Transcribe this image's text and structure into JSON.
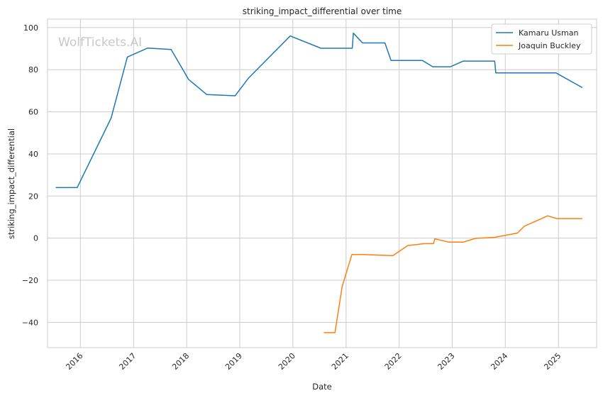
{
  "chart_data": {
    "type": "line",
    "title": "striking_impact_differential over time",
    "xlabel": "Date",
    "ylabel": "striking_impact_differential",
    "watermark": "WolfTickets.AI",
    "x_ticks": [
      "2016",
      "2017",
      "2018",
      "2019",
      "2020",
      "2021",
      "2022",
      "2023",
      "2024",
      "2025"
    ],
    "y_ticks": [
      "−40",
      "−20",
      "0",
      "20",
      "40",
      "60",
      "80",
      "100"
    ],
    "ylim": [
      -52,
      104
    ],
    "xlim": [
      "2015-05-20",
      "2025-09-20"
    ],
    "grid": true,
    "legend_position": "top-right",
    "series": [
      {
        "name": "Kamaru Usman",
        "color": "#1f77b4",
        "points": [
          [
            "2015-07-15",
            24
          ],
          [
            "2015-12-10",
            24
          ],
          [
            "2016-07-30",
            57
          ],
          [
            "2016-11-19",
            86
          ],
          [
            "2017-04-08",
            90.3
          ],
          [
            "2017-09-16",
            89.6
          ],
          [
            "2018-01-14",
            75.4
          ],
          [
            "2018-05-19",
            68.2
          ],
          [
            "2018-11-30",
            67.6
          ],
          [
            "2019-03-02",
            76
          ],
          [
            "2019-12-14",
            96
          ],
          [
            "2020-07-12",
            90.2
          ],
          [
            "2021-02-13",
            90.2
          ],
          [
            "2021-02-20",
            97.4
          ],
          [
            "2021-04-24",
            92.7
          ],
          [
            "2021-09-25",
            92.7
          ],
          [
            "2021-11-06",
            84.4
          ],
          [
            "2022-06-10",
            84.4
          ],
          [
            "2022-08-20",
            81.4
          ],
          [
            "2022-12-20",
            81.4
          ],
          [
            "2023-03-18",
            84.1
          ],
          [
            "2023-10-20",
            84.1
          ],
          [
            "2023-10-28",
            78.5
          ],
          [
            "2024-12-14",
            78.5
          ],
          [
            "2025-06-14",
            71.5
          ]
        ]
      },
      {
        "name": "Joaquin Buckley",
        "color": "#ff7f0e",
        "points": [
          [
            "2020-08-01",
            -44.9
          ],
          [
            "2020-10-17",
            -44.9
          ],
          [
            "2020-12-05",
            -23
          ],
          [
            "2021-02-10",
            -7.8
          ],
          [
            "2021-05-01",
            -7.8
          ],
          [
            "2021-10-30",
            -8.3
          ],
          [
            "2021-11-20",
            -8.3
          ],
          [
            "2022-03-01",
            -3.5
          ],
          [
            "2022-06-25",
            -2.6
          ],
          [
            "2022-08-25",
            -2.6
          ],
          [
            "2022-09-03",
            -0.3
          ],
          [
            "2022-12-10",
            -1.9
          ],
          [
            "2023-03-18",
            -1.9
          ],
          [
            "2023-06-10",
            -0.1
          ],
          [
            "2023-10-21",
            0.4
          ],
          [
            "2024-03-25",
            2.4
          ],
          [
            "2024-05-10",
            5.6
          ],
          [
            "2024-10-19",
            10.6
          ],
          [
            "2024-12-20",
            9.3
          ],
          [
            "2025-06-14",
            9.3
          ]
        ]
      }
    ]
  }
}
